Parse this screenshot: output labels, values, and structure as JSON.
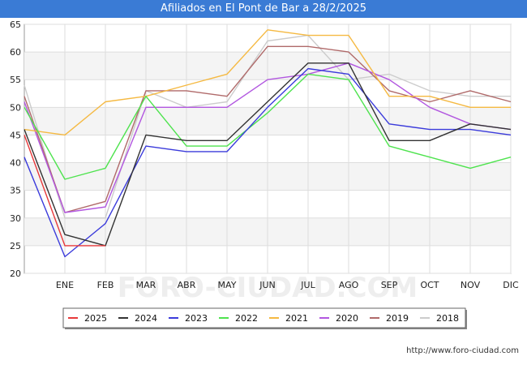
{
  "title": "Afiliados en El Pont de Bar a 28/2/2025",
  "watermark": "FORO-CIUDAD.COM",
  "footer_url": "http://www.foro-ciudad.com",
  "chart_data": {
    "type": "line",
    "title": "Afiliados en El Pont de Bar a 28/2/2025",
    "categories": [
      "",
      "ENE",
      "FEB",
      "MAR",
      "ABR",
      "MAY",
      "JUN",
      "JUL",
      "AGO",
      "SEP",
      "OCT",
      "NOV",
      "DIC"
    ],
    "ylim": [
      20,
      65
    ],
    "yticks": [
      20,
      25,
      30,
      35,
      40,
      45,
      50,
      55,
      60,
      65
    ],
    "grid": true,
    "legend_position": "bottom",
    "series": [
      {
        "name": "2025",
        "color": "#e8393a",
        "values": [
          45,
          25,
          25,
          null,
          null,
          null,
          null,
          null,
          null,
          null,
          null,
          null,
          null
        ]
      },
      {
        "name": "2024",
        "color": "#333333",
        "values": [
          46,
          27,
          25,
          45,
          44,
          44,
          51,
          58,
          58,
          44,
          44,
          47,
          46
        ]
      },
      {
        "name": "2023",
        "color": "#3b3bdb",
        "values": [
          41,
          23,
          29,
          43,
          42,
          42,
          50,
          57,
          56,
          47,
          46,
          46,
          45
        ]
      },
      {
        "name": "2022",
        "color": "#4ee34e",
        "values": [
          50,
          37,
          39,
          52,
          43,
          43,
          49,
          56,
          55,
          43,
          41,
          39,
          41
        ]
      },
      {
        "name": "2021",
        "color": "#f5b942",
        "values": [
          46,
          45,
          51,
          52,
          54,
          56,
          64,
          63,
          63,
          52,
          52,
          50,
          50
        ]
      },
      {
        "name": "2020",
        "color": "#b257e0",
        "values": [
          51,
          31,
          32,
          50,
          50,
          50,
          55,
          56,
          58,
          55,
          50,
          47,
          46
        ]
      },
      {
        "name": "2019",
        "color": "#b06a6a",
        "values": [
          52,
          31,
          33,
          53,
          53,
          52,
          61,
          61,
          60,
          53,
          51,
          53,
          51
        ]
      },
      {
        "name": "2018",
        "color": "#cccccc",
        "values": [
          54,
          30,
          30,
          53,
          50,
          51,
          62,
          63,
          55,
          56,
          53,
          52,
          52
        ]
      }
    ]
  }
}
